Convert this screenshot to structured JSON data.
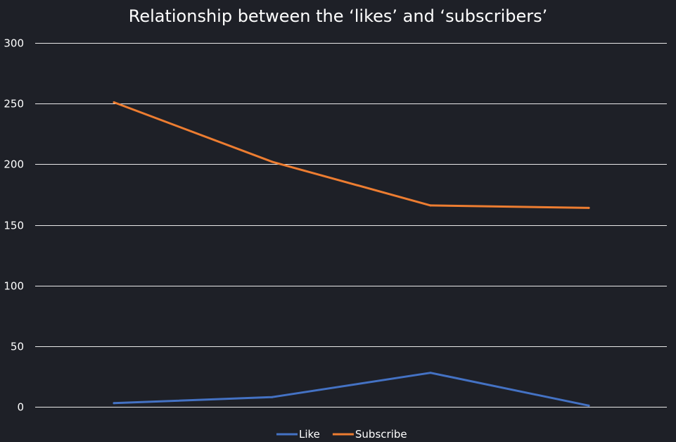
{
  "chart_data": {
    "type": "line",
    "title": "Relationship between the ‘likes’ and ‘subscribers’",
    "xlabel": "",
    "ylabel": "",
    "categories": [
      "",
      "",
      "",
      ""
    ],
    "series": [
      {
        "name": "Like",
        "color": "#4472c4",
        "values": [
          3,
          8,
          28,
          1
        ]
      },
      {
        "name": "Subscribe",
        "color": "#ed7d31",
        "values": [
          251,
          202,
          166,
          164
        ]
      }
    ],
    "ylim": [
      0,
      300
    ],
    "yticks": [
      0,
      50,
      100,
      150,
      200,
      250,
      300
    ],
    "grid": true,
    "legend": "bottom-center",
    "background": "#1e2027",
    "gridline_color": "#ffffff",
    "text_color": "#ffffff"
  }
}
